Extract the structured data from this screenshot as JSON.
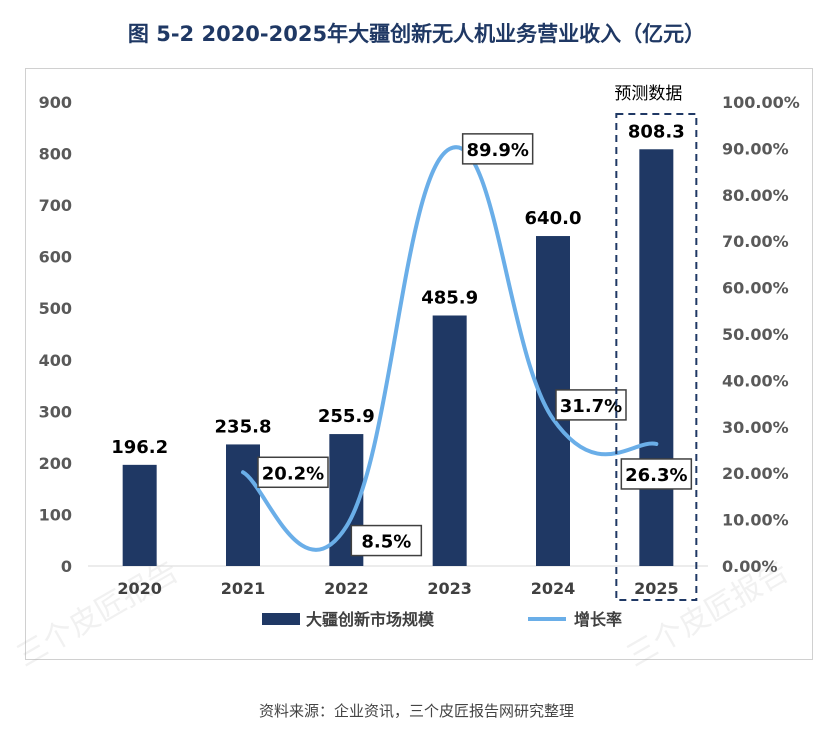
{
  "title": "图  5-2 2020-2025年大疆创新无人机业务营业收入（亿元）",
  "source": "资料来源：企业资讯，三个皮匠报告网研究整理",
  "watermark": "三个皮匠报告",
  "chart_data": {
    "type": "bar",
    "categories": [
      "2020",
      "2021",
      "2022",
      "2023",
      "2024",
      "2025"
    ],
    "series": [
      {
        "name": "大疆创新市场规模",
        "type": "bar",
        "axis": "left",
        "values": [
          196.2,
          235.8,
          255.9,
          485.9,
          640.0,
          808.3
        ],
        "labels": [
          "196.2",
          "235.8",
          "255.9",
          "485.9",
          "640.0",
          "808.3"
        ]
      },
      {
        "name": "增长率",
        "type": "line",
        "axis": "right",
        "x": [
          "2021",
          "2022",
          "2023",
          "2024",
          "2025"
        ],
        "values": [
          20.2,
          8.5,
          89.9,
          31.7,
          26.3
        ],
        "labels": [
          "20.2%",
          "8.5%",
          "89.9%",
          "31.7%",
          "26.3%"
        ]
      }
    ],
    "yleft": {
      "ylim": [
        0,
        900
      ],
      "ticks": [
        "0",
        "100",
        "200",
        "300",
        "400",
        "500",
        "600",
        "700",
        "800",
        "900"
      ]
    },
    "yright": {
      "ylim": [
        0,
        100
      ],
      "ticks": [
        "0.00%",
        "10.00%",
        "20.00%",
        "30.00%",
        "40.00%",
        "50.00%",
        "60.00%",
        "70.00%",
        "80.00%",
        "90.00%",
        "100.00%"
      ]
    },
    "forecast_label": "预测数据",
    "forecast_category": "2025",
    "colors": {
      "bar": "#1f3864",
      "line": "#6aaee8",
      "text": "#595959",
      "label": "#000000"
    },
    "legend_position": "bottom"
  }
}
